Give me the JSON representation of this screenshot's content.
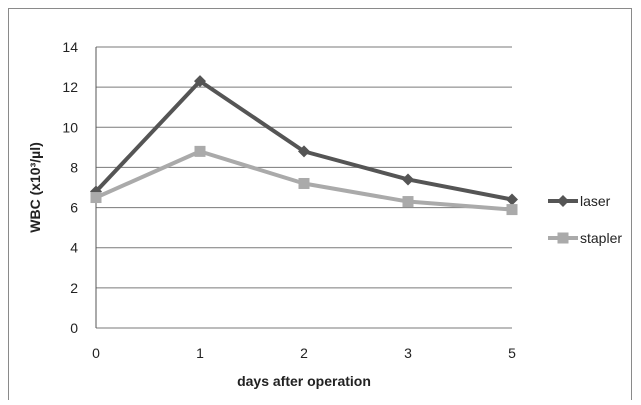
{
  "chart_data": {
    "type": "line",
    "title": "",
    "xlabel": "days after operation",
    "ylabel": "WBC (x10³/µl)",
    "categories": [
      "0",
      "1",
      "2",
      "3",
      "5"
    ],
    "ylim": [
      0,
      14
    ],
    "yticks": [
      "0",
      "2",
      "4",
      "6",
      "8",
      "10",
      "12",
      "14"
    ],
    "grid": true,
    "legend_position": "right",
    "series": [
      {
        "name": "laser",
        "values": [
          6.8,
          12.3,
          8.8,
          7.4,
          6.4
        ],
        "color": "#555555",
        "marker": "diamond"
      },
      {
        "name": "stapler",
        "values": [
          6.5,
          8.8,
          7.2,
          6.3,
          5.9
        ],
        "color": "#aaaaaa",
        "marker": "square"
      }
    ]
  }
}
